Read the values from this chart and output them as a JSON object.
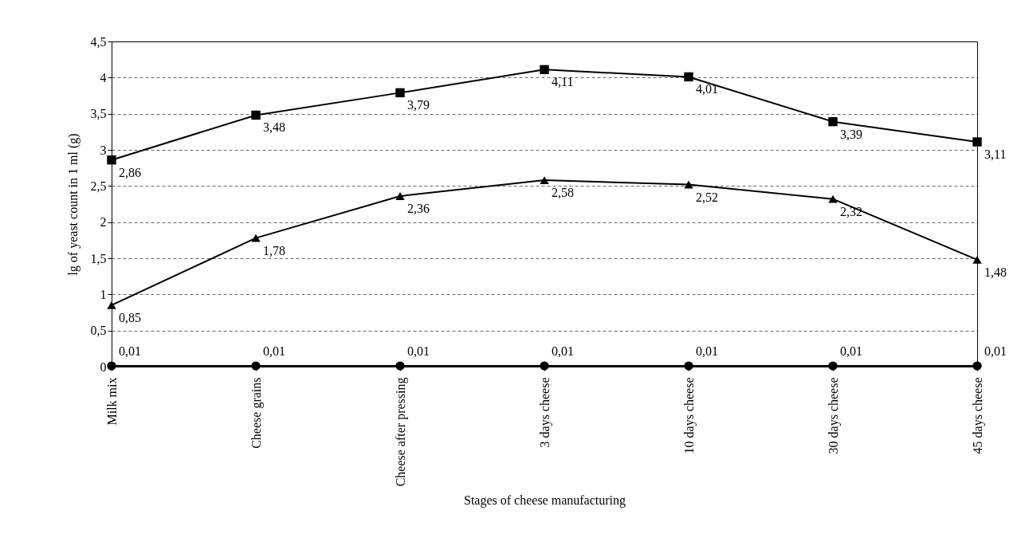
{
  "chart_data": {
    "type": "line",
    "xlabel": "Stages of cheese manufacturing",
    "ylabel": "lg of yeast count in 1 ml (g)",
    "categories": [
      "Milk mix",
      "Cheese grains",
      "Cheese after pressing",
      "3 days cheese",
      "10 days cheese",
      "30 days cheese",
      "45 days cheese"
    ],
    "ylim": [
      0,
      4.5
    ],
    "yticks": [
      0,
      {
        "value": 0.5,
        "label": "0,5"
      },
      1,
      {
        "value": 1.5,
        "label": "1,5"
      },
      2,
      {
        "value": 2.5,
        "label": "2,5"
      },
      3,
      {
        "value": 3.5,
        "label": "3,5"
      },
      4,
      {
        "value": 4.5,
        "label": "4,5"
      }
    ],
    "grid": "y",
    "line_style": "solid",
    "series": [
      {
        "color": "#000000",
        "marker": "square",
        "values": [
          2.86,
          3.48,
          3.79,
          4.11,
          4.01,
          3.39,
          3.11
        ],
        "value_labels": [
          "2,86",
          "3,48",
          "3,79",
          "4,11",
          "4,01",
          "3,39",
          "3,11"
        ]
      },
      {
        "color": "#000000",
        "marker": "triangle",
        "values": [
          0.85,
          1.78,
          2.36,
          2.58,
          2.52,
          2.32,
          1.48
        ],
        "value_labels": [
          "0,85",
          "1,78",
          "2,36",
          "2,58",
          "2,52",
          "2,32",
          "1,48"
        ]
      },
      {
        "color": "#000000",
        "marker": "circle",
        "values": [
          0.01,
          0.01,
          0.01,
          0.01,
          0.01,
          0.01,
          0.01
        ],
        "value_labels": [
          "0,01",
          "0,01",
          "0,01",
          "0,01",
          "0,01",
          "0,01",
          "0,01"
        ]
      }
    ]
  }
}
